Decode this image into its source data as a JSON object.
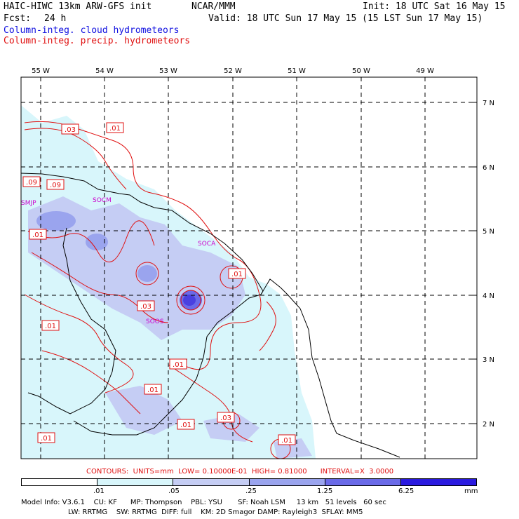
{
  "header": {
    "model_title": "HAIC-HIWC 13km ARW-GFS init",
    "org": "NCAR/MMM",
    "init": "Init: 18 UTC Sat 16 May 15",
    "fcst_label": "Fcst:",
    "fcst_value": "24 h",
    "valid": "Valid: 18 UTC Sun 17 May 15 (15 LST Sun 17 May 15)",
    "field_cloud": "Column-integ. cloud hydrometeors",
    "field_precip": "Column-integ. precip. hydrometeors"
  },
  "map": {
    "lon_labels": [
      "55 W",
      "54 W",
      "53 W",
      "52 W",
      "51 W",
      "50 W",
      "49 W"
    ],
    "lat_labels": [
      "7 N",
      "6 N",
      "5 N",
      "4 N",
      "3 N",
      "2 N"
    ],
    "stations": [
      "SMJP",
      "SOCM",
      "SOCA",
      "SOOS"
    ],
    "contour_labels": [
      ".03",
      ".01",
      ".09",
      ".09",
      ".01",
      ".01",
      ".03",
      ".01",
      ".01",
      ".01",
      ".01",
      ".03",
      ".01",
      ".01"
    ]
  },
  "contour_info": {
    "text": "CONTOURS:  UNITS=mm  LOW= 0.10000E-01  HIGH= 0.81000      INTERVAL=X  3.0000"
  },
  "colorbar": {
    "ticks": [
      ".01",
      ".05",
      ".25",
      "1.25",
      "6.25"
    ],
    "unit": "mm",
    "colors": [
      "#ffffff",
      "#d8f6fb",
      "#c5cdf4",
      "#9aa4ee",
      "#6a6ae8",
      "#2a1ae0"
    ]
  },
  "footer": {
    "line1": "Model Info: V3.6.1    CU: KF      MP: Thompson    PBL: YSU       SF: Noah LSM     13 km   51 levels   60 sec",
    "line2": "LW: RRTMG    SW: RRTMG  DIFF: full    KM: 2D Smagor DAMP: Rayleigh3  SFLAY: MM5"
  }
}
